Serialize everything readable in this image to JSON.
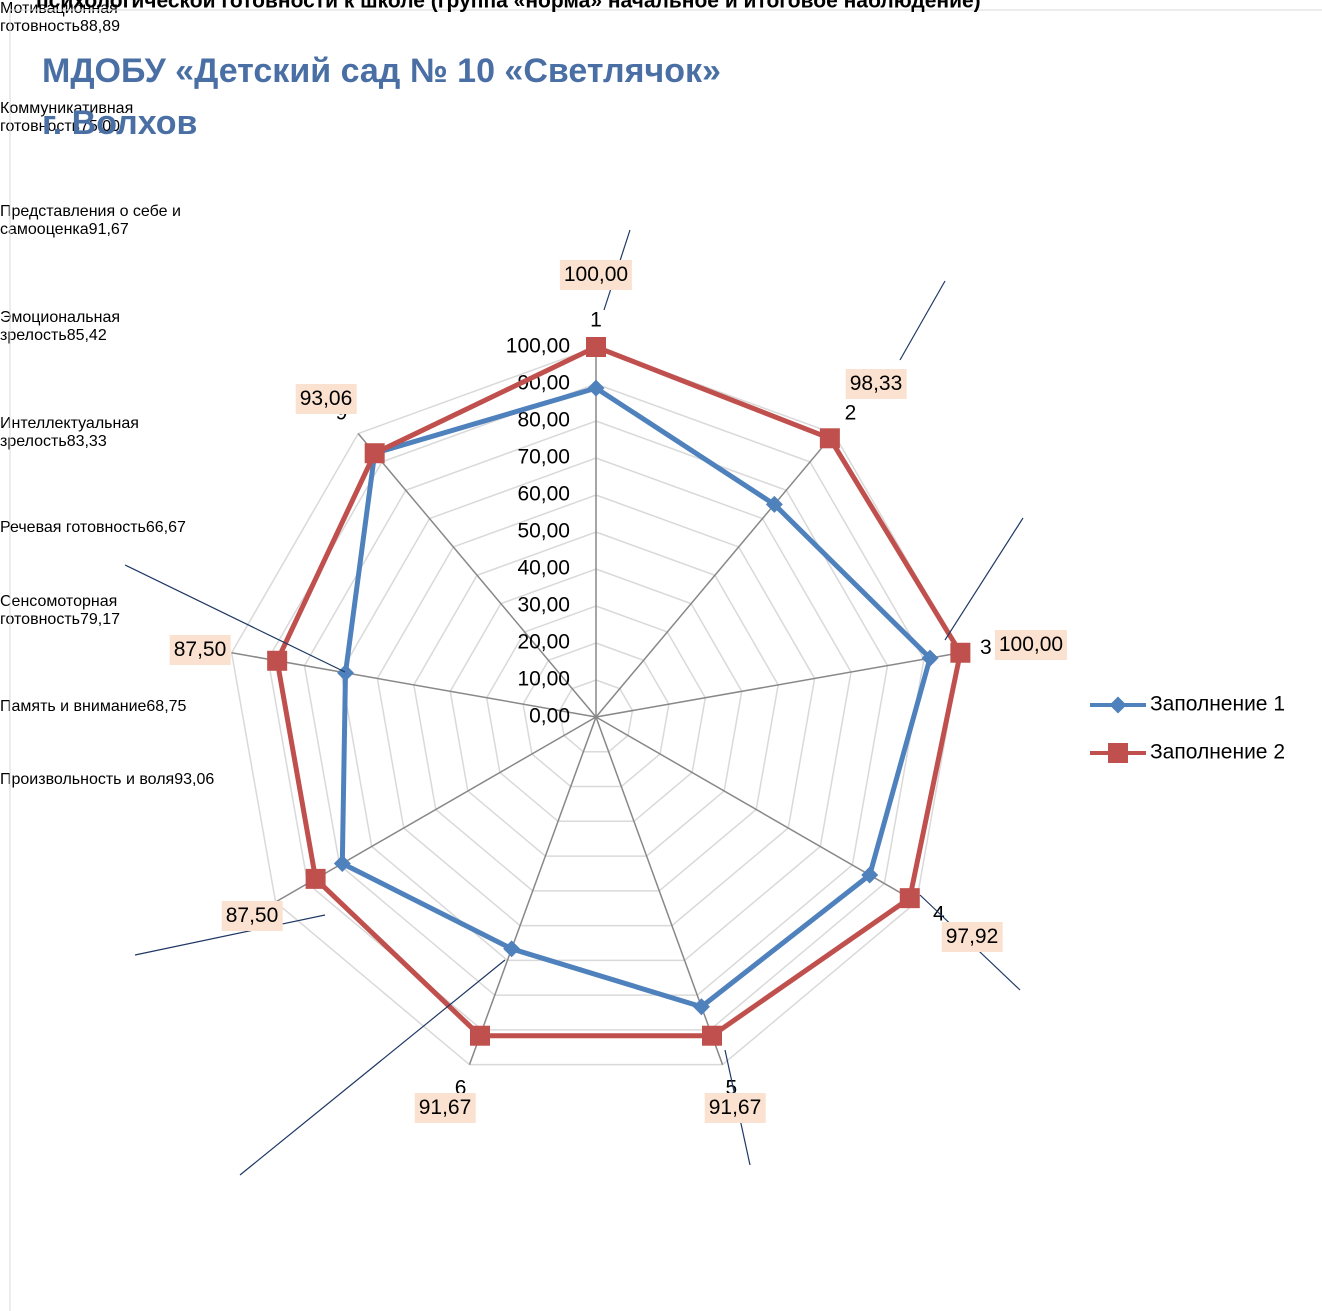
{
  "chart_data": {
    "type": "radar",
    "header": "психологической готовности к школе (группа «норма» начальное и итоговое наблюдение)",
    "title": "МДОБУ «Детский сад № 10 «Светлячок»",
    "subtitle": "г. Волхов",
    "categories": [
      "1",
      "2",
      "3",
      "4",
      "5",
      "6",
      "7",
      "8",
      "9"
    ],
    "category_names": [
      "Мотивационная готовность",
      "Коммуникативная готовность",
      "Представления о себе и самооценка",
      "Эмоциональная зрелость",
      "Интеллектуальная зрелость",
      "Речевая готовность",
      "Сенсомоторная готовность",
      "Память и внимание",
      "Произвольность и воля"
    ],
    "series": [
      {
        "name": "Заполнение 1",
        "color": "#4f81bd",
        "values": [
          88.89,
          75.0,
          91.67,
          85.42,
          83.33,
          66.67,
          79.17,
          68.75,
          93.06
        ],
        "value_labels": [
          "88,89",
          "75,00",
          "91,67",
          "85,42",
          "83,33",
          "66,67",
          "79,17",
          "68,75",
          "93,06"
        ]
      },
      {
        "name": "Заполнение 2",
        "color": "#c0504d",
        "values": [
          100,
          98.33,
          100,
          97.92,
          91.67,
          91.67,
          87.5,
          87.5,
          93.06
        ],
        "value_labels": [
          "100,00",
          "98,33",
          "100,00",
          "97,92",
          "91,67",
          "91,67",
          "87,50",
          "87,50",
          "93,06"
        ]
      }
    ],
    "ylim": [
      0,
      100
    ],
    "yticks": [
      {
        "value": 0,
        "label": "0,00"
      },
      {
        "value": 10,
        "label": "10,00"
      },
      {
        "value": 20,
        "label": "20,00"
      },
      {
        "value": 30,
        "label": "30,00"
      },
      {
        "value": 40,
        "label": "40,00"
      },
      {
        "value": 50,
        "label": "50,00"
      },
      {
        "value": 60,
        "label": "60,00"
      },
      {
        "value": 70,
        "label": "70,00"
      },
      {
        "value": 80,
        "label": "80,00"
      },
      {
        "value": 90,
        "label": "90,00"
      },
      {
        "value": 100,
        "label": "100,00"
      }
    ],
    "grid": true,
    "legend": "right"
  }
}
